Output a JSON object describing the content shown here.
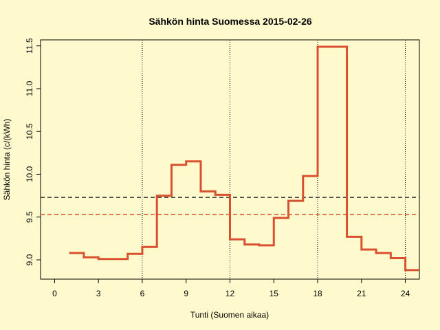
{
  "chart_data": {
    "type": "step",
    "title": "Sähkön hinta Suomessa 2015-02-26",
    "xlabel": "Tunti (Suomen aikaa)",
    "ylabel": "Sähkön hinta (c/(kWh)",
    "x": [
      1,
      2,
      3,
      4,
      5,
      6,
      7,
      8,
      9,
      10,
      11,
      12,
      13,
      14,
      15,
      16,
      17,
      18,
      19,
      20,
      21,
      22,
      23,
      24
    ],
    "series": [
      {
        "color": "#d9502f",
        "values": [
          9.08,
          9.03,
          9.01,
          9.01,
          9.07,
          9.15,
          9.75,
          10.11,
          10.15,
          9.8,
          9.76,
          9.24,
          9.18,
          9.17,
          9.49,
          9.69,
          9.98,
          11.49,
          11.49,
          9.27,
          9.12,
          9.08,
          9.02,
          8.88
        ]
      }
    ],
    "hlines": [
      {
        "value": 9.73,
        "color": "#333333"
      },
      {
        "value": 9.53,
        "color": "#d9502f"
      }
    ],
    "vlines": [
      6,
      12,
      18,
      24
    ],
    "xlim": [
      -0.96,
      24.96
    ],
    "xticks": [
      0,
      3,
      6,
      9,
      12,
      15,
      18,
      21,
      24
    ],
    "ylim": [
      8.775,
      11.57
    ],
    "yticks": [
      {
        "value": 9,
        "label": "9.0"
      },
      {
        "value": 9.5,
        "label": "9.5"
      },
      {
        "value": 10,
        "label": "10.0"
      },
      {
        "value": 10.5,
        "label": "10.5"
      },
      {
        "value": 11,
        "label": "11.0"
      },
      {
        "value": 11.5,
        "label": "11.5"
      }
    ]
  }
}
